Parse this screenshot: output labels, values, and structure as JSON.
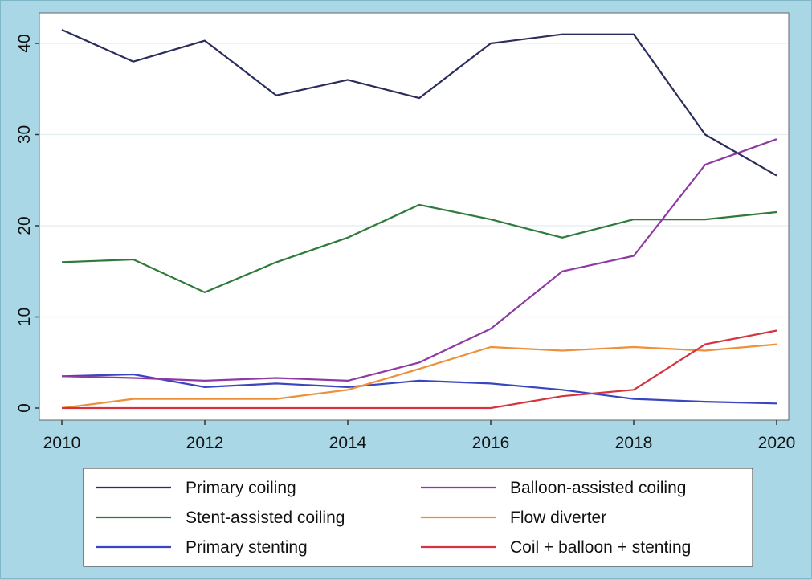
{
  "chart_data": {
    "type": "line",
    "title": "",
    "xlabel": "",
    "ylabel": "",
    "x": [
      2010,
      2011,
      2012,
      2013,
      2014,
      2015,
      2016,
      2017,
      2018,
      2019,
      2020
    ],
    "xlim": [
      2010,
      2020
    ],
    "ylim": [
      0,
      42
    ],
    "xticks": [
      "2010",
      "2012",
      "2014",
      "2016",
      "2018",
      "2020"
    ],
    "yticks": [
      "0",
      "10",
      "20",
      "30",
      "40"
    ],
    "grid": "horizontal",
    "legend_position": "bottom",
    "series": [
      {
        "name": "Primary coiling",
        "color": "#2b2d5c",
        "values": [
          41.5,
          38.0,
          40.3,
          34.3,
          36.0,
          34.0,
          40.0,
          41.0,
          41.0,
          30.0,
          25.5
        ]
      },
      {
        "name": "Stent-assisted coiling",
        "color": "#2e7a3b",
        "values": [
          16.0,
          16.3,
          12.7,
          16.0,
          18.7,
          22.3,
          20.7,
          18.7,
          20.7,
          20.7,
          21.5
        ]
      },
      {
        "name": "Primary stenting",
        "color": "#3a46c0",
        "values": [
          3.5,
          3.7,
          2.3,
          2.7,
          2.3,
          3.0,
          2.7,
          2.0,
          1.0,
          0.7,
          0.5
        ]
      },
      {
        "name": "Balloon-assisted coiling",
        "color": "#8e3aa3",
        "values": [
          3.5,
          3.3,
          3.0,
          3.3,
          3.0,
          5.0,
          8.7,
          15.0,
          16.7,
          26.7,
          29.5
        ]
      },
      {
        "name": "Flow diverter",
        "color": "#ee8f3a",
        "values": [
          0.0,
          1.0,
          1.0,
          1.0,
          2.0,
          4.3,
          6.7,
          6.3,
          6.7,
          6.3,
          7.0
        ]
      },
      {
        "name": "Coil + balloon + stenting",
        "color": "#d4343f",
        "values": [
          0.0,
          0.0,
          0.0,
          0.0,
          0.0,
          0.0,
          0.0,
          1.3,
          2.0,
          7.0,
          8.5
        ]
      }
    ]
  }
}
